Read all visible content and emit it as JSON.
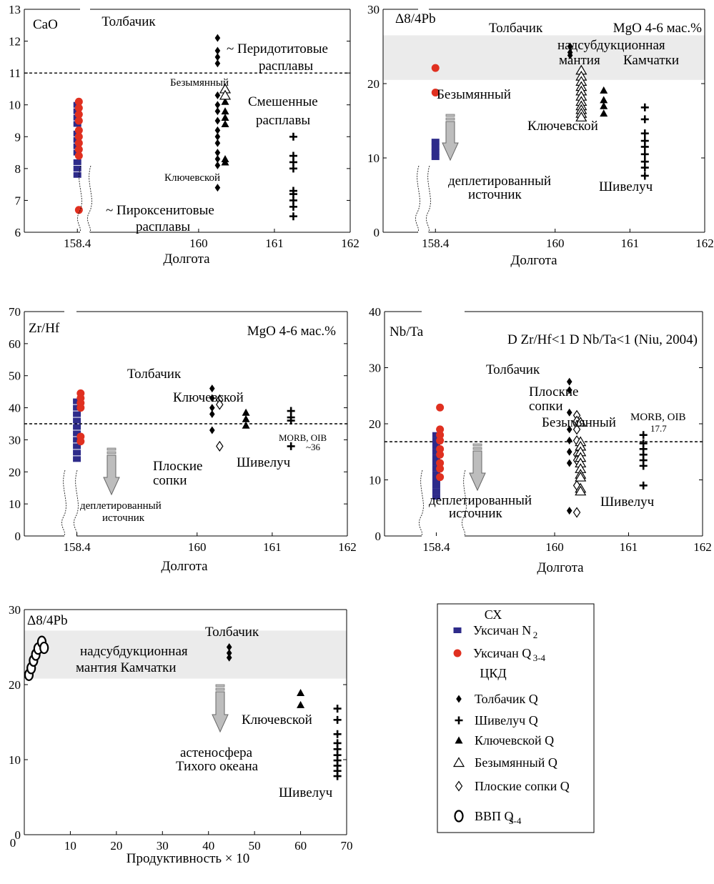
{
  "colors": {
    "uksichan_n2": "#2e2b8a",
    "uksichan_q34": "#e03020",
    "band": "#ebebeb",
    "arrow": "#bdbdbd"
  },
  "chart_data": [
    {
      "type": "scatter",
      "ylabel_inner": "CaO",
      "xlabel": "Долгота",
      "ylim": [
        6,
        13
      ],
      "yticks": [
        "6",
        "7",
        "8",
        "9",
        "10",
        "11",
        "12",
        "13"
      ],
      "xticks": [
        {
          "v": 158.4,
          "t": "158.4"
        },
        {
          "v": 160,
          "t": "160"
        },
        {
          "v": 161,
          "t": "161"
        },
        {
          "v": 162,
          "t": "162"
        }
      ],
      "hline": 11,
      "annotations": [
        "Толбачик",
        "~ Перидотитовые",
        "расплавы",
        "Безымянный",
        "Смешенные",
        "расплавы",
        "Ключевской",
        "~ Пироксенитовые",
        "расплавы"
      ],
      "series": [
        {
          "name": "Уксичан N2",
          "marker": "square",
          "x": 158.4,
          "y": [
            10.0,
            9.8,
            9.6,
            9.4,
            9.1,
            8.9,
            8.7,
            8.5,
            8.2,
            8.0,
            7.8
          ]
        },
        {
          "name": "Уксичан Q3-4",
          "marker": "circle",
          "x": 158.42,
          "y": [
            10.1,
            9.9,
            9.7,
            9.5,
            9.2,
            9.0,
            8.8,
            8.6,
            8.4,
            6.7
          ]
        },
        {
          "name": "Толбачик Q",
          "marker": "diamond",
          "x": 160.25,
          "y": [
            12.1,
            11.7,
            11.5,
            11.3,
            10.3,
            10.0,
            9.8,
            9.5,
            9.2,
            9.0,
            8.8,
            8.5,
            8.3,
            8.1,
            7.4
          ]
        },
        {
          "name": "Ключевской Q",
          "marker": "tri",
          "x": 160.35,
          "y": [
            10.1,
            9.8,
            9.6,
            9.4,
            8.3,
            8.2
          ]
        },
        {
          "name": "Безымянный Q",
          "marker": "tri-open",
          "x": 160.35,
          "y": [
            10.5,
            10.3
          ]
        },
        {
          "name": "Шивелуч Q",
          "marker": "plus",
          "x": 161.25,
          "y": [
            9.0,
            8.4,
            8.2,
            8.0,
            7.3,
            7.2,
            7.0,
            6.8,
            6.5
          ]
        }
      ]
    },
    {
      "type": "scatter",
      "ylabel_inner": "Δ8/4Pb",
      "title": "MgO 4-6 мас.%",
      "xlabel": "Долгота",
      "ylim": [
        0,
        30
      ],
      "yticks": [
        "0",
        "10",
        "20",
        "30"
      ],
      "xticks": [
        {
          "v": 158.4,
          "t": "158.4"
        },
        {
          "v": 160,
          "t": "160"
        },
        {
          "v": 161,
          "t": "161"
        },
        {
          "v": 162,
          "t": "162"
        }
      ],
      "band": [
        20.5,
        26.5
      ],
      "annotations": [
        "Толбачик",
        "надсубдукционная",
        "мантия",
        "Камчатки",
        "Безымянный",
        "Ключевской",
        "деплетированный",
        "источник",
        "Шивелуч"
      ],
      "series": [
        {
          "name": "Уксичан N2",
          "marker": "square",
          "x": 158.4,
          "y": [
            12.2,
            11.5,
            10.8,
            10.1
          ]
        },
        {
          "name": "Уксичан Q3-4",
          "marker": "circle",
          "x": 158.4,
          "y": [
            22.1,
            18.8
          ]
        },
        {
          "name": "Толбачик Q",
          "marker": "diamond",
          "x": 160.2,
          "y": [
            25.0,
            24.2,
            23.8
          ]
        },
        {
          "name": "Безымянный Q",
          "marker": "tri-open",
          "x": 160.35,
          "y": [
            21.8,
            21.0,
            20.3,
            19.6,
            19.0,
            18.3,
            17.6,
            17.0,
            16.5,
            16.0,
            15.5
          ]
        },
        {
          "name": "Ключевской Q",
          "marker": "tri",
          "x": 160.65,
          "y": [
            19.1,
            17.8,
            17.0,
            16.0
          ]
        },
        {
          "name": "Шивелуч Q",
          "marker": "plus",
          "x": 161.2,
          "y": [
            16.8,
            15.2,
            13.3,
            12.3,
            11.5,
            10.5,
            9.5,
            8.7,
            7.6
          ]
        }
      ]
    },
    {
      "type": "scatter",
      "ylabel_inner": "Zr/Hf",
      "title": "MgO 4-6 мас.%",
      "xlabel": "Долгота",
      "ylim": [
        0,
        70
      ],
      "yticks": [
        "0",
        "10",
        "20",
        "30",
        "40",
        "50",
        "60",
        "70"
      ],
      "xticks": [
        {
          "v": 158.4,
          "t": "158.4"
        },
        {
          "v": 160,
          "t": "160"
        },
        {
          "v": 161,
          "t": "161"
        },
        {
          "v": 162,
          "t": "162"
        }
      ],
      "hline": 35,
      "annotations": [
        "Толбачик",
        "Ключевской",
        "Плоские",
        "сопки",
        "Шивелуч",
        "MORB, OIB",
        "~36",
        "деплетированный",
        "источник"
      ],
      "series": [
        {
          "name": "Уксичан N2",
          "marker": "square",
          "x": 158.4,
          "y": [
            42,
            40,
            38,
            36,
            34,
            32,
            30,
            28,
            26,
            24
          ]
        },
        {
          "name": "Уксичан Q3-4",
          "marker": "circle",
          "x": 158.45,
          "y": [
            44.5,
            43,
            41.5,
            40,
            31,
            29.5
          ]
        },
        {
          "name": "Толбачик Q",
          "marker": "diamond",
          "x": 160.2,
          "y": [
            46,
            43,
            40,
            38,
            33
          ]
        },
        {
          "name": "Плоские сопки Q",
          "marker": "diamond-open",
          "x": 160.3,
          "y": [
            42.5,
            41,
            28
          ]
        },
        {
          "name": "Ключевской Q",
          "marker": "tri",
          "x": 160.65,
          "y": [
            38.5,
            36.5,
            34.5
          ]
        },
        {
          "name": "Шивелуч Q",
          "marker": "plus",
          "x": 161.25,
          "y": [
            39,
            37,
            36,
            28
          ]
        }
      ]
    },
    {
      "type": "scatter",
      "ylabel_inner": "Nb/Ta",
      "title": "D Zr/Hf<1 D Nb/Ta<1 (Niu, 2004)",
      "xlabel": "Долгота",
      "ylim": [
        0,
        40
      ],
      "yticks": [
        "0",
        "10",
        "20",
        "30",
        "40"
      ],
      "xticks": [
        {
          "v": 158.4,
          "t": "158.4"
        },
        {
          "v": 160,
          "t": "160"
        },
        {
          "v": 161,
          "t": "161"
        },
        {
          "v": 162,
          "t": "162"
        }
      ],
      "hline": 16.8,
      "annotations": [
        "Толбачик",
        "Плоские",
        "сопки",
        "Безымянный",
        "MORB, OIB",
        "17.7",
        "деплетированный",
        "источник",
        "Шивелуч"
      ],
      "series": [
        {
          "name": "Уксичан N2",
          "marker": "square",
          "x": 158.4,
          "y": [
            18,
            17,
            16,
            15,
            14,
            13,
            12,
            11,
            10,
            9,
            8,
            7
          ]
        },
        {
          "name": "Уксичан Q3-4",
          "marker": "circle",
          "x": 158.45,
          "y": [
            22.9,
            19,
            18,
            17,
            15.5,
            14.5,
            13,
            12,
            10.5
          ]
        },
        {
          "name": "Толбачик Q",
          "marker": "diamond",
          "x": 160.2,
          "y": [
            27.5,
            26,
            22,
            19,
            17,
            15,
            13,
            4.5
          ]
        },
        {
          "name": "Плоские сопки Q",
          "marker": "diamond-open",
          "x": 160.3,
          "y": [
            21.5,
            20.5,
            19,
            17,
            14.5,
            13.5,
            9,
            4.2
          ]
        },
        {
          "name": "Безымянный Q",
          "marker": "tri-open",
          "x": 160.35,
          "y": [
            20.3,
            16.8,
            16,
            15,
            14,
            13,
            12,
            11,
            10.5,
            8.5,
            8
          ]
        },
        {
          "name": "Шивелуч Q",
          "marker": "plus",
          "x": 161.2,
          "y": [
            18,
            16.5,
            15.5,
            14.5,
            13.5,
            12.5,
            9
          ]
        }
      ]
    },
    {
      "type": "scatter",
      "ylabel_inner": "Δ8/4Pb",
      "xlabel": "Продуктивность × 10",
      "ylim": [
        0,
        30
      ],
      "xlim": [
        0,
        70
      ],
      "yticks": [
        "0",
        "10",
        "20",
        "30"
      ],
      "xticks": [
        {
          "v": 10,
          "t": "10"
        },
        {
          "v": 20,
          "t": "20"
        },
        {
          "v": 30,
          "t": "30"
        },
        {
          "v": 40,
          "t": "40"
        },
        {
          "v": 50,
          "t": "50"
        },
        {
          "v": 60,
          "t": "60"
        },
        {
          "v": 70,
          "t": "70"
        }
      ],
      "x0_label": "0",
      "band": [
        20.8,
        27.2
      ],
      "annotations": [
        "Толбачик",
        "надсубдукционная",
        "мантия Камчатки",
        "Ключевской",
        "астеносфера",
        "Тихого океана",
        "Шивелуч"
      ],
      "series": [
        {
          "name": "ВВП Q3-4",
          "marker": "ring",
          "points": [
            [
              1,
              21.3
            ],
            [
              1.5,
              22.2
            ],
            [
              2,
              23.2
            ],
            [
              2.5,
              24
            ],
            [
              3,
              24.8
            ],
            [
              3.8,
              25.7
            ],
            [
              4.3,
              24.9
            ]
          ]
        },
        {
          "name": "Толбачик Q",
          "marker": "diamond",
          "points": [
            [
              44.5,
              25
            ],
            [
              44.5,
              24.2
            ],
            [
              44.5,
              23.6
            ]
          ]
        },
        {
          "name": "Ключевской Q",
          "marker": "tri",
          "points": [
            [
              60,
              18.9
            ],
            [
              60,
              17.3
            ]
          ]
        },
        {
          "name": "Шивелуч Q",
          "marker": "plus",
          "points": [
            [
              68,
              16.8
            ],
            [
              68,
              15.3
            ],
            [
              68,
              13.4
            ],
            [
              68,
              12.2
            ],
            [
              68,
              11.4
            ],
            [
              68,
              10.6
            ],
            [
              68,
              9.9
            ],
            [
              68,
              9.2
            ],
            [
              68,
              8.5
            ],
            [
              68,
              7.8
            ]
          ]
        }
      ]
    }
  ],
  "legend": {
    "title1": "СХ",
    "items1": [
      {
        "marker": "square",
        "label": "Уксичан N",
        "sub": "2"
      },
      {
        "marker": "circle",
        "label": "Уксичан Q",
        "sub": "3-4"
      }
    ],
    "title2": "ЦКД",
    "items2": [
      {
        "marker": "diamond",
        "label": "Толбачик Q",
        "sub": ""
      },
      {
        "marker": "plus",
        "label": "Шивелуч Q",
        "sub": ""
      },
      {
        "marker": "tri",
        "label": "Ключевской Q",
        "sub": ""
      },
      {
        "marker": "tri-open",
        "label": "Безымянный Q",
        "sub": ""
      },
      {
        "marker": "diamond-open",
        "label": "Плоские сопки Q",
        "sub": ""
      },
      {
        "marker": "ring",
        "label": "ВВП Q",
        "sub": "3-4"
      }
    ]
  }
}
